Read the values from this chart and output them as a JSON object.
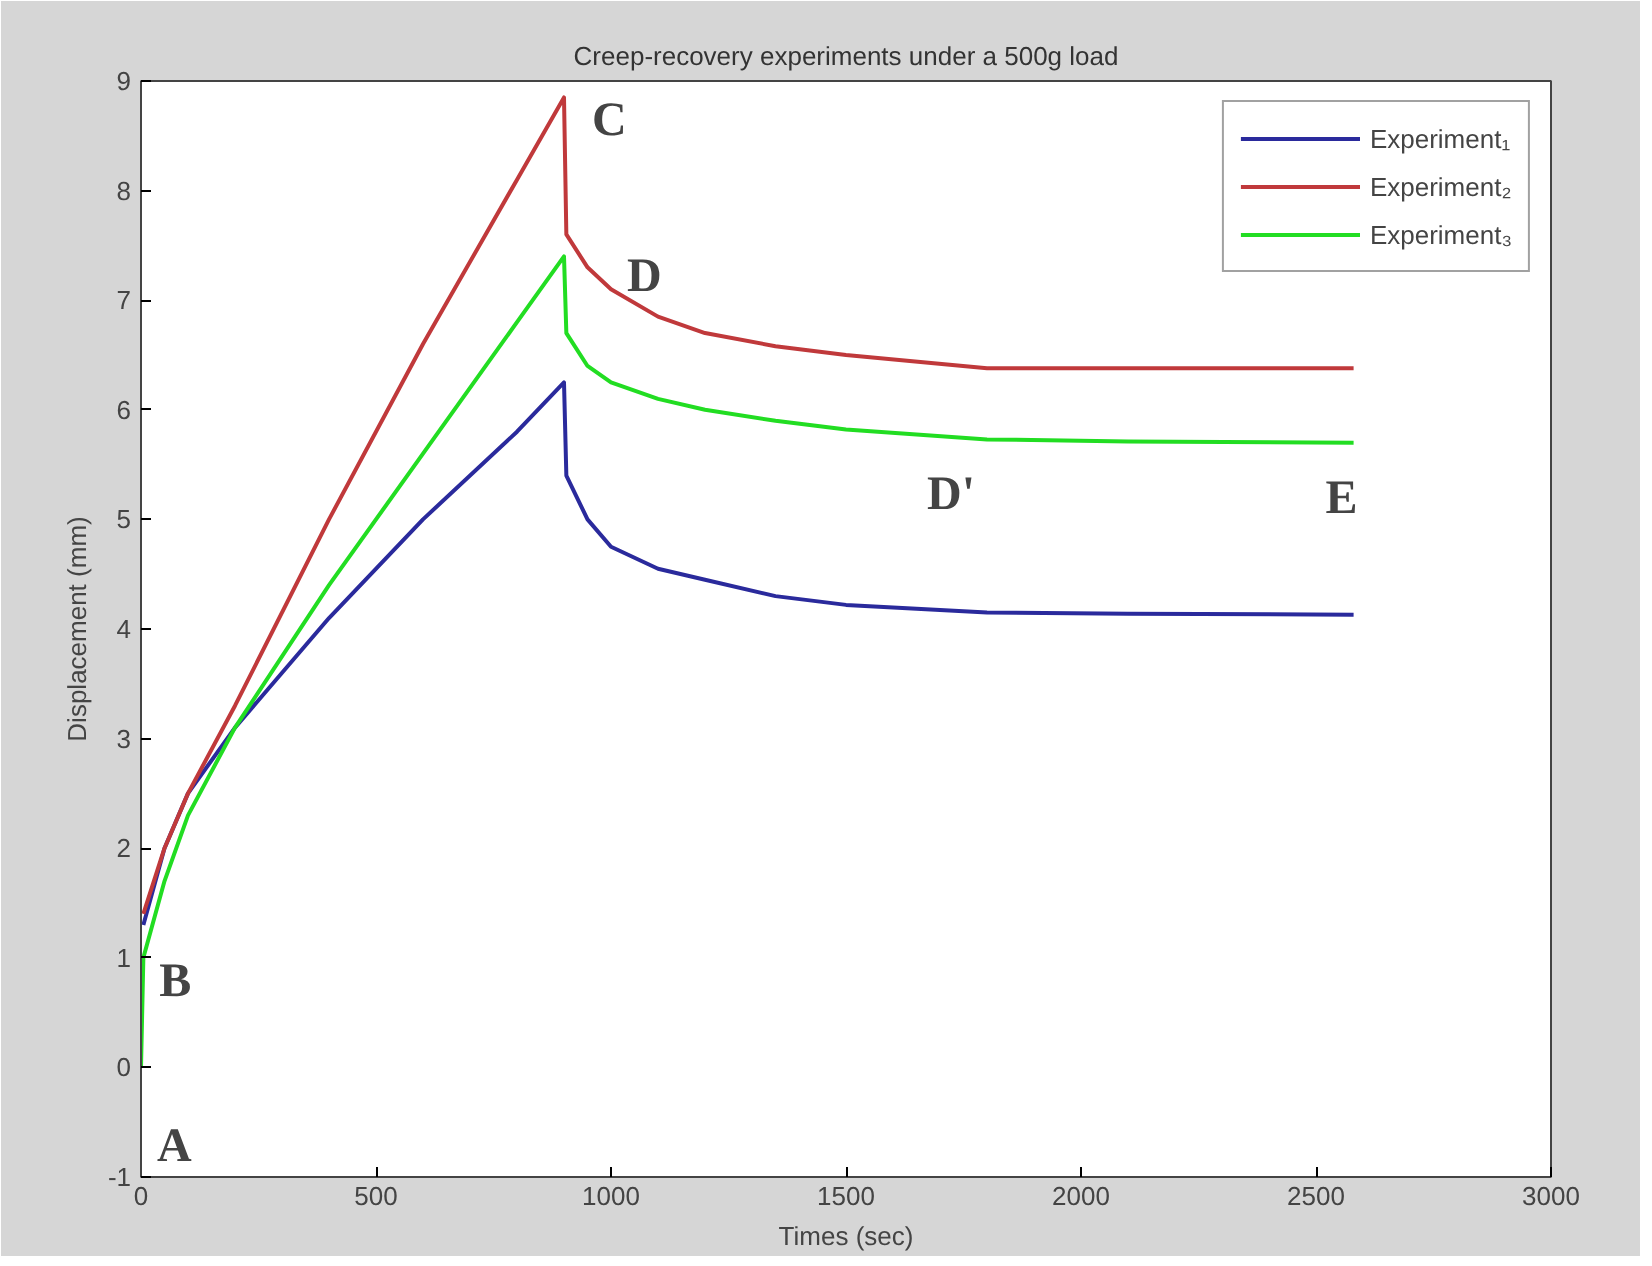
{
  "chart_data": {
    "type": "line",
    "title": "Creep-recovery experiments under a 500g load",
    "xlabel": "Times (sec)",
    "ylabel": "Displacement (mm)",
    "xlim": [
      0,
      3000
    ],
    "xticks": [
      0,
      500,
      1000,
      1500,
      2000,
      2500,
      3000
    ],
    "ylim": [
      -1,
      9
    ],
    "yticks": [
      -1,
      0,
      1,
      2,
      3,
      4,
      5,
      6,
      7,
      8,
      9
    ],
    "grid": false,
    "legend": "top right",
    "line_style": "solid",
    "marker": "none",
    "series": [
      {
        "name": "Experiment₁",
        "color": "#2a2a9c",
        "x": [
          5,
          50,
          100,
          200,
          400,
          600,
          800,
          900,
          905,
          950,
          1000,
          1100,
          1200,
          1350,
          1500,
          1800,
          2100,
          2580
        ],
        "values": [
          1.3,
          2.0,
          2.5,
          3.1,
          4.1,
          5.0,
          5.8,
          6.25,
          5.4,
          5.0,
          4.75,
          4.55,
          4.45,
          4.3,
          4.22,
          4.15,
          4.14,
          4.13
        ]
      },
      {
        "name": "Experiment₂",
        "color": "#c0393b",
        "x": [
          5,
          50,
          100,
          200,
          400,
          600,
          800,
          900,
          905,
          950,
          1000,
          1100,
          1200,
          1350,
          1500,
          1800,
          2100,
          2580
        ],
        "values": [
          1.4,
          2.0,
          2.5,
          3.3,
          5.0,
          6.6,
          8.1,
          8.85,
          7.6,
          7.3,
          7.1,
          6.85,
          6.7,
          6.58,
          6.5,
          6.38,
          6.38,
          6.38
        ]
      },
      {
        "name": "Experiment₃",
        "color": "#22dd22",
        "x": [
          0,
          5,
          50,
          100,
          200,
          400,
          600,
          800,
          900,
          905,
          950,
          1000,
          1100,
          1200,
          1350,
          1500,
          1800,
          2100,
          2580
        ],
        "values": [
          0,
          1.0,
          1.7,
          2.3,
          3.1,
          4.4,
          5.6,
          6.8,
          7.4,
          6.7,
          6.4,
          6.25,
          6.1,
          6.0,
          5.9,
          5.82,
          5.73,
          5.71,
          5.7
        ]
      }
    ],
    "annotations": [
      {
        "text": "A",
        "x": 0,
        "y": 0
      },
      {
        "text": "B",
        "x": 5,
        "y": 1.0
      },
      {
        "text": "C",
        "x": 900,
        "y": 8.85
      },
      {
        "text": "D",
        "x": 1000,
        "y": 7.1
      },
      {
        "text": "D'",
        "x": 1800,
        "y": 5.73
      },
      {
        "text": "E",
        "x": 2580,
        "y": 5.7
      }
    ]
  }
}
